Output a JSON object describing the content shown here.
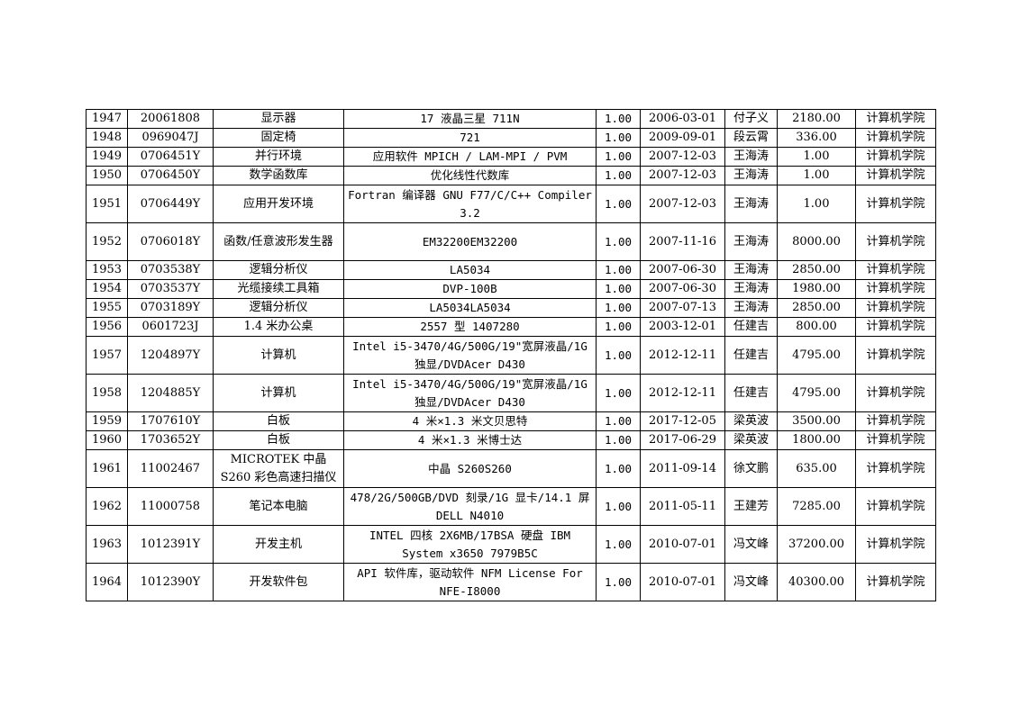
{
  "rows": [
    {
      "no": "1947",
      "code": "20061808",
      "name": "显示器",
      "model": "17 液晶三星 711N",
      "qty": "1.00",
      "date": "2006-03-01",
      "person": "付子义",
      "price": "2180.00",
      "dept": "计算机学院"
    },
    {
      "no": "1948",
      "code": "0969047J",
      "name": "固定椅",
      "model": "721",
      "qty": "1.00",
      "date": "2009-09-01",
      "person": "段云霄",
      "price": "336.00",
      "dept": "计算机学院"
    },
    {
      "no": "1949",
      "code": "0706451Y",
      "name": "并行环境",
      "model": "应用软件 MPICH  / LAM-MPI  /  PVM",
      "qty": "1.00",
      "date": "2007-12-03",
      "person": "王海涛",
      "price": "1.00",
      "dept": "计算机学院"
    },
    {
      "no": "1950",
      "code": "0706450Y",
      "name": "数学函数库",
      "model": "优化线性代数库",
      "qty": "1.00",
      "date": "2007-12-03",
      "person": "王海涛",
      "price": "1.00",
      "dept": "计算机学院"
    },
    {
      "no": "1951",
      "code": "0706449Y",
      "name": "应用开发环境",
      "model": "Fortran 编译器 GNU F77/C/C++ Compiler 3.2",
      "qty": "1.00",
      "date": "2007-12-03",
      "person": "王海涛",
      "price": "1.00",
      "dept": "计算机学院"
    },
    {
      "no": "1952",
      "code": "0706018Y",
      "name": "函数/任意波形发生器",
      "model": "EM32200EM32200",
      "qty": "1.00",
      "date": "2007-11-16",
      "person": "王海涛",
      "price": "8000.00",
      "dept": "计算机学院"
    },
    {
      "no": "1953",
      "code": "0703538Y",
      "name": "逻辑分析仪",
      "model": "LA5034",
      "qty": "1.00",
      "date": "2007-06-30",
      "person": "王海涛",
      "price": "2850.00",
      "dept": "计算机学院"
    },
    {
      "no": "1954",
      "code": "0703537Y",
      "name": "光缆接续工具箱",
      "model": "DVP-100B",
      "qty": "1.00",
      "date": "2007-06-30",
      "person": "王海涛",
      "price": "1980.00",
      "dept": "计算机学院"
    },
    {
      "no": "1955",
      "code": "0703189Y",
      "name": "逻辑分析仪",
      "model": "LA5034LA5034",
      "qty": "1.00",
      "date": "2007-07-13",
      "person": "王海涛",
      "price": "2850.00",
      "dept": "计算机学院"
    },
    {
      "no": "1956",
      "code": "0601723J",
      "name": "1.4 米办公桌",
      "model": "2557 型 1407280",
      "qty": "1.00",
      "date": "2003-12-01",
      "person": "任建吉",
      "price": "800.00",
      "dept": "计算机学院"
    },
    {
      "no": "1957",
      "code": "1204897Y",
      "name": "计算机",
      "model": "Intel i5-3470/4G/500G/19\"宽屏液晶/1G 独显/DVDAcer D430",
      "qty": "1.00",
      "date": "2012-12-11",
      "person": "任建吉",
      "price": "4795.00",
      "dept": "计算机学院"
    },
    {
      "no": "1958",
      "code": "1204885Y",
      "name": "计算机",
      "model": "Intel i5-3470/4G/500G/19\"宽屏液晶/1G 独显/DVDAcer D430",
      "qty": "1.00",
      "date": "2012-12-11",
      "person": "任建吉",
      "price": "4795.00",
      "dept": "计算机学院"
    },
    {
      "no": "1959",
      "code": "1707610Y",
      "name": "白板",
      "model": "4 米×1.3 米文贝思特",
      "qty": "1.00",
      "date": "2017-12-05",
      "person": "梁英波",
      "price": "3500.00",
      "dept": "计算机学院"
    },
    {
      "no": "1960",
      "code": "1703652Y",
      "name": "白板",
      "model": "4 米×1.3 米博士达",
      "qty": "1.00",
      "date": "2017-06-29",
      "person": "梁英波",
      "price": "1800.00",
      "dept": "计算机学院"
    },
    {
      "no": "1961",
      "code": "11002467",
      "name": "MICROTEK 中晶 S260 彩色高速扫描仪",
      "model": "中晶 S260S260",
      "qty": "1.00",
      "date": "2011-09-14",
      "person": "徐文鹏",
      "price": "635.00",
      "dept": "计算机学院"
    },
    {
      "no": "1962",
      "code": "11000758",
      "name": "笔记本电脑",
      "model": "478/2G/500GB/DVD 刻录/1G 显卡/14.1 屏 DELL  N4010",
      "qty": "1.00",
      "date": "2011-05-11",
      "person": "王建芳",
      "price": "7285.00",
      "dept": "计算机学院"
    },
    {
      "no": "1963",
      "code": "1012391Y",
      "name": "开发主机",
      "model": "INTEL 四核 2X6MB/17BSA 硬盘 IBM System x3650 7979B5C",
      "qty": "1.00",
      "date": "2010-07-01",
      "person": "冯文峰",
      "price": "37200.00",
      "dept": "计算机学院"
    },
    {
      "no": "1964",
      "code": "1012390Y",
      "name": "开发软件包",
      "model": "API 软件库，驱动软件 NFM License For NFE-I8000",
      "qty": "1.00",
      "date": "2010-07-01",
      "person": "冯文峰",
      "price": "40300.00",
      "dept": "计算机学院"
    }
  ]
}
